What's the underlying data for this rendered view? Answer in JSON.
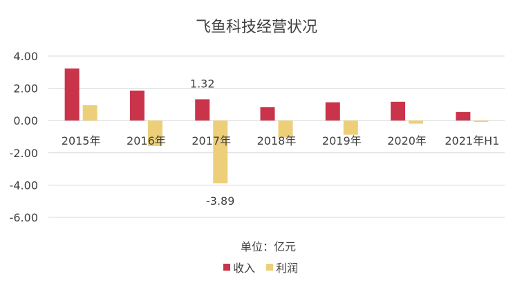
{
  "chart_data": {
    "type": "bar",
    "title": "飞鱼科技经营状况",
    "unit_note": "单位：亿元",
    "categories": [
      "2015年",
      "2016年",
      "2017年",
      "2018年",
      "2019年",
      "2020年",
      "2021年H1"
    ],
    "series": [
      {
        "name": "收入",
        "color": "#C9344A",
        "values": [
          3.23,
          1.86,
          1.32,
          0.83,
          1.13,
          1.17,
          0.53
        ]
      },
      {
        "name": "利润",
        "color": "#EDCF79",
        "values": [
          0.95,
          -1.58,
          -3.89,
          -1.05,
          -0.88,
          -0.19,
          -0.08
        ]
      }
    ],
    "data_labels": [
      {
        "series": 0,
        "index": 2,
        "text": "1.32"
      },
      {
        "series": 1,
        "index": 2,
        "text": "-3.89"
      }
    ],
    "ylim": [
      -6,
      4
    ],
    "yticks": [
      4,
      2,
      0,
      -2,
      -4,
      -6
    ],
    "ytick_labels": [
      "4.00",
      "2.00",
      "0.00",
      "-2.00",
      "-4.00",
      "-6.00"
    ],
    "grid": true,
    "legend_position": "bottom"
  }
}
